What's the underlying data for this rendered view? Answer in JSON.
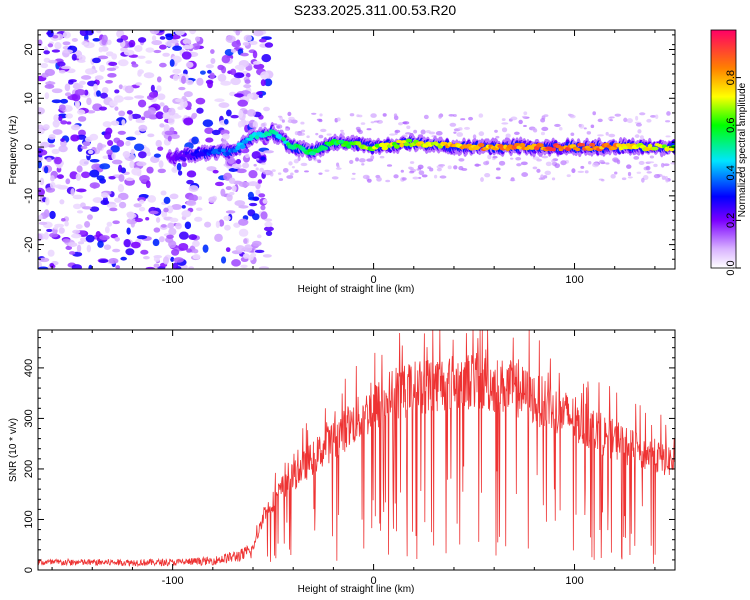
{
  "title": "S233.2025.311.00.53.R20",
  "chart_data": [
    {
      "type": "heatmap",
      "xlabel": "Height of straight line (km)",
      "ylabel": "Frequency (Hz)",
      "xlim": [
        -167,
        150
      ],
      "ylim": [
        -25,
        24
      ],
      "x_ticks": [
        -100,
        0,
        100
      ],
      "y_ticks": [
        -20,
        -10,
        0,
        10,
        20
      ],
      "y_tick_labels": [
        "-20",
        "-10",
        "0",
        "10",
        "20"
      ],
      "x_tick_labels": [
        "-100",
        "0",
        "100"
      ],
      "colorbar": {
        "label": "Normalized spectral amplitude",
        "ticks": [
          0.0,
          0.2,
          0.4,
          0.6,
          0.8
        ],
        "tick_labels": [
          "0.0",
          "0.2",
          "0.4",
          "0.6",
          "0.8"
        ],
        "colormap": [
          "#ffffff",
          "#7b00ff",
          "#0000ff",
          "#00ffff",
          "#00ff00",
          "#ffff00",
          "#ff8000",
          "#ff0066"
        ]
      },
      "ridge": {
        "x": [
          -100,
          -80,
          -70,
          -60,
          -50,
          -40,
          -30,
          -20,
          0,
          20,
          40,
          60,
          80,
          100,
          120,
          150
        ],
        "y": [
          -2,
          -1,
          -1,
          2,
          3,
          0,
          -1,
          1,
          0,
          1,
          0,
          0,
          0,
          0,
          0,
          0
        ],
        "amplitude": [
          0.2,
          0.35,
          0.4,
          0.5,
          0.5,
          0.55,
          0.6,
          0.6,
          0.7,
          0.75,
          0.8,
          0.85,
          0.9,
          0.9,
          0.85,
          0.7
        ]
      },
      "noise_region_x": [
        -167,
        -60
      ]
    },
    {
      "type": "line",
      "xlabel": "Height of straight line (km)",
      "ylabel": "SNR (10 * v/v)",
      "xlim": [
        -167,
        150
      ],
      "ylim": [
        0,
        475
      ],
      "x_ticks": [
        -100,
        0,
        100
      ],
      "x_tick_labels": [
        "-100",
        "0",
        "100"
      ],
      "y_ticks": [
        0,
        100,
        200,
        300,
        400
      ],
      "y_tick_labels": [
        "0",
        "100",
        "200",
        "300",
        "400"
      ],
      "color": "#ee3333",
      "envelope": {
        "x": [
          -167,
          -100,
          -80,
          -65,
          -60,
          -55,
          -45,
          -30,
          -10,
          10,
          30,
          50,
          70,
          90,
          110,
          130,
          150
        ],
        "y": [
          15,
          15,
          18,
          30,
          40,
          110,
          170,
          230,
          300,
          360,
          380,
          385,
          370,
          330,
          285,
          245,
          220
        ]
      }
    }
  ]
}
